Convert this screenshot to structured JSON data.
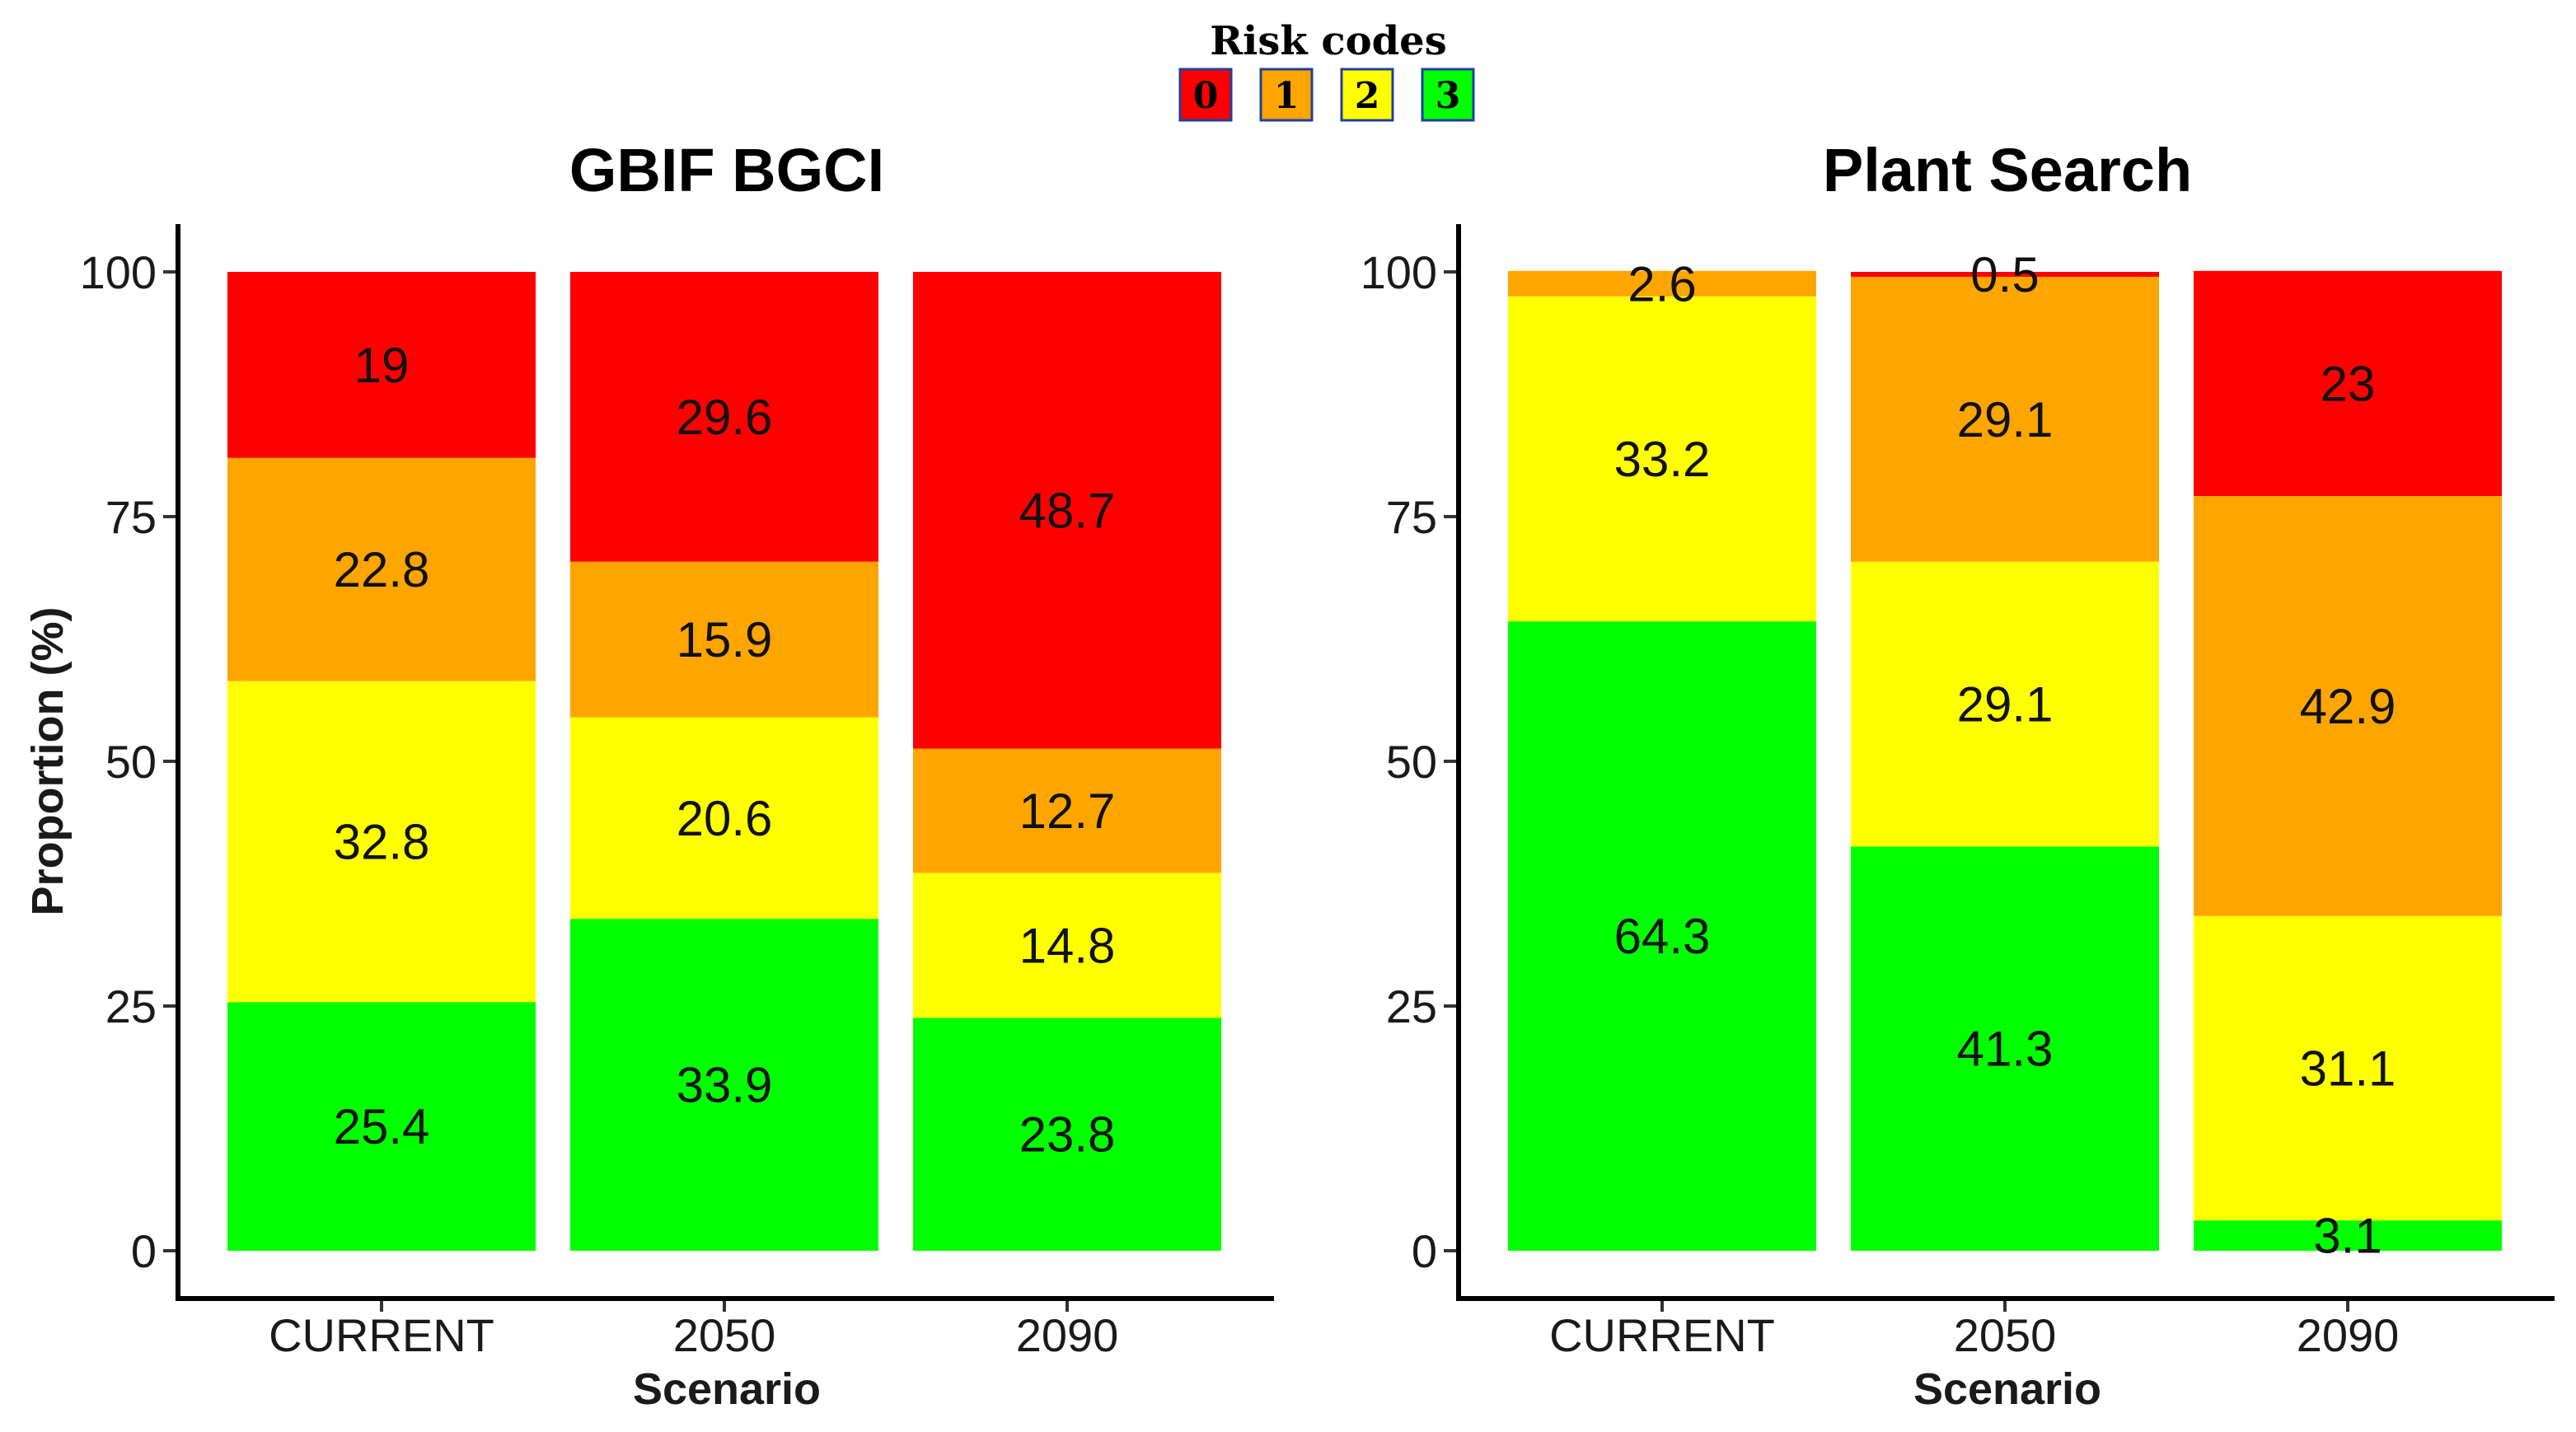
{
  "legend": {
    "title": "Risk codes",
    "codes": [
      {
        "label": "0",
        "color": "#ff0000"
      },
      {
        "label": "1",
        "color": "#ffa500"
      },
      {
        "label": "2",
        "color": "#ffff00"
      },
      {
        "label": "3",
        "color": "#00ff00"
      }
    ]
  },
  "chart_data": [
    {
      "type": "bar",
      "stacked": true,
      "title": "GBIF BGCI",
      "xlabel": "Scenario",
      "ylabel": "Proportion (%)",
      "ylim": [
        0,
        100
      ],
      "yticks": [
        "0",
        "25",
        "50",
        "75",
        "100"
      ],
      "categories": [
        "CURRENT",
        "2050",
        "2090"
      ],
      "series": [
        {
          "name": "3",
          "color": "#00ff00",
          "values": [
            25.4,
            33.9,
            23.8
          ],
          "labels": [
            "25.4",
            "33.9",
            "23.8"
          ]
        },
        {
          "name": "2",
          "color": "#ffff00",
          "values": [
            32.8,
            20.6,
            14.8
          ],
          "labels": [
            "32.8",
            "20.6",
            "14.8"
          ]
        },
        {
          "name": "1",
          "color": "#ffa500",
          "values": [
            22.8,
            15.9,
            12.7
          ],
          "labels": [
            "22.8",
            "15.9",
            "12.7"
          ]
        },
        {
          "name": "0",
          "color": "#ff0000",
          "values": [
            19,
            29.6,
            48.7
          ],
          "labels": [
            "19",
            "29.6",
            "48.7"
          ]
        }
      ]
    },
    {
      "type": "bar",
      "stacked": true,
      "title": "Plant Search",
      "xlabel": "Scenario",
      "ylabel": "",
      "ylim": [
        0,
        100
      ],
      "yticks": [
        "0",
        "25",
        "50",
        "75",
        "100"
      ],
      "categories": [
        "CURRENT",
        "2050",
        "2090"
      ],
      "series": [
        {
          "name": "3",
          "color": "#00ff00",
          "values": [
            64.3,
            41.3,
            3.1
          ],
          "labels": [
            "64.3",
            "41.3",
            "3.1"
          ]
        },
        {
          "name": "2",
          "color": "#ffff00",
          "values": [
            33.2,
            29.1,
            31.1
          ],
          "labels": [
            "33.2",
            "29.1",
            "31.1"
          ]
        },
        {
          "name": "1",
          "color": "#ffa500",
          "values": [
            2.6,
            29.1,
            42.9
          ],
          "labels": [
            "2.6",
            "29.1",
            "42.9"
          ]
        },
        {
          "name": "0",
          "color": "#ff0000",
          "values": [
            0,
            0.5,
            23
          ],
          "labels": [
            "",
            "0.5",
            "23"
          ]
        }
      ]
    }
  ]
}
